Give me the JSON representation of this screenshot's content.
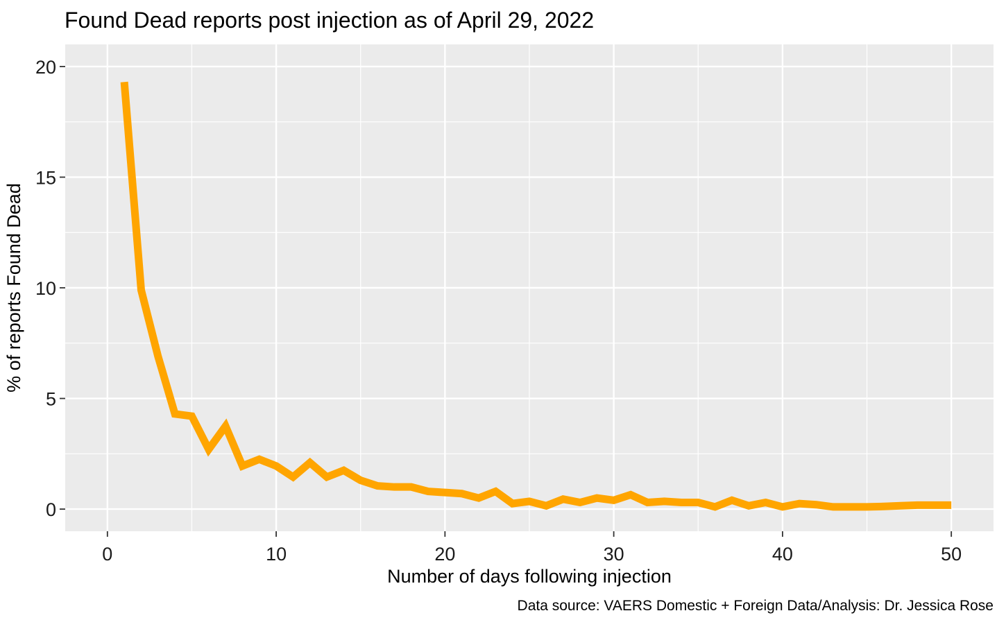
{
  "chart_data": {
    "type": "line",
    "title": "Found Dead reports post injection as of April 29, 2022",
    "xlabel": "Number of days following injection",
    "ylabel": "% of reports Found Dead",
    "caption": "Data source: VAERS Domestic + Foreign Data/Analysis: Dr. Jessica Rose",
    "xlim": [
      -2.5,
      52.5
    ],
    "ylim": [
      -1,
      21
    ],
    "x_ticks": [
      0,
      10,
      20,
      30,
      40,
      50
    ],
    "x_tick_labels": [
      "0",
      "10",
      "20",
      "30",
      "40",
      "50"
    ],
    "y_ticks": [
      0,
      5,
      10,
      15,
      20
    ],
    "y_tick_labels": [
      "0",
      "5",
      "10",
      "15",
      "20"
    ],
    "grid": true,
    "line_color": "#FFA500",
    "panel_background": "#EBEBEB",
    "gridline_color": "#FFFFFF",
    "x": [
      1,
      2,
      3,
      4,
      5,
      6,
      7,
      8,
      9,
      10,
      11,
      12,
      13,
      14,
      15,
      16,
      17,
      18,
      19,
      20,
      21,
      22,
      23,
      24,
      25,
      26,
      27,
      28,
      29,
      30,
      31,
      32,
      33,
      34,
      35,
      36,
      37,
      38,
      39,
      40,
      41,
      42,
      43,
      44,
      45,
      46,
      47,
      48,
      49,
      50
    ],
    "y": [
      19.3,
      9.9,
      6.9,
      4.3,
      4.2,
      2.7,
      3.75,
      1.95,
      2.25,
      1.95,
      1.45,
      2.1,
      1.45,
      1.75,
      1.3,
      1.05,
      1.0,
      1.0,
      0.8,
      0.75,
      0.7,
      0.5,
      0.8,
      0.25,
      0.35,
      0.15,
      0.45,
      0.3,
      0.5,
      0.4,
      0.65,
      0.3,
      0.35,
      0.3,
      0.3,
      0.1,
      0.4,
      0.15,
      0.3,
      0.1,
      0.25,
      0.2,
      0.1,
      0.1,
      0.1,
      0.12,
      0.15,
      0.18,
      0.18,
      0.18
    ]
  }
}
